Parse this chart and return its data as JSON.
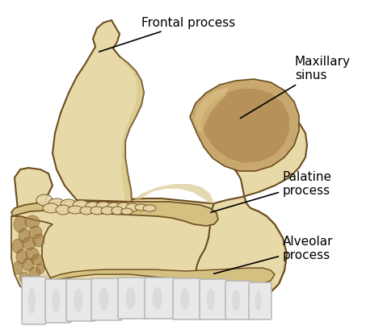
{
  "bg_color": "#ffffff",
  "bone_light": "#e8d9a8",
  "bone_mid": "#d4c080",
  "bone_dark": "#c4a455",
  "bone_shad": "#b8924a",
  "sinus_fill": "#c9a870",
  "sinus_dark": "#a07840",
  "outline": "#6b4c1e",
  "tooth_light": "#e8e8e8",
  "tooth_mid": "#c8c8c8",
  "tooth_dark": "#b0b0b0",
  "text_color": "#000000",
  "labels": {
    "frontal": "Frontal process",
    "maxillary": "Maxillary\nsinus",
    "palatine": "Palatine\nprocess",
    "alveolar": "Alveolar\nprocess"
  },
  "figsize": [
    4.74,
    4.09
  ],
  "dpi": 100
}
